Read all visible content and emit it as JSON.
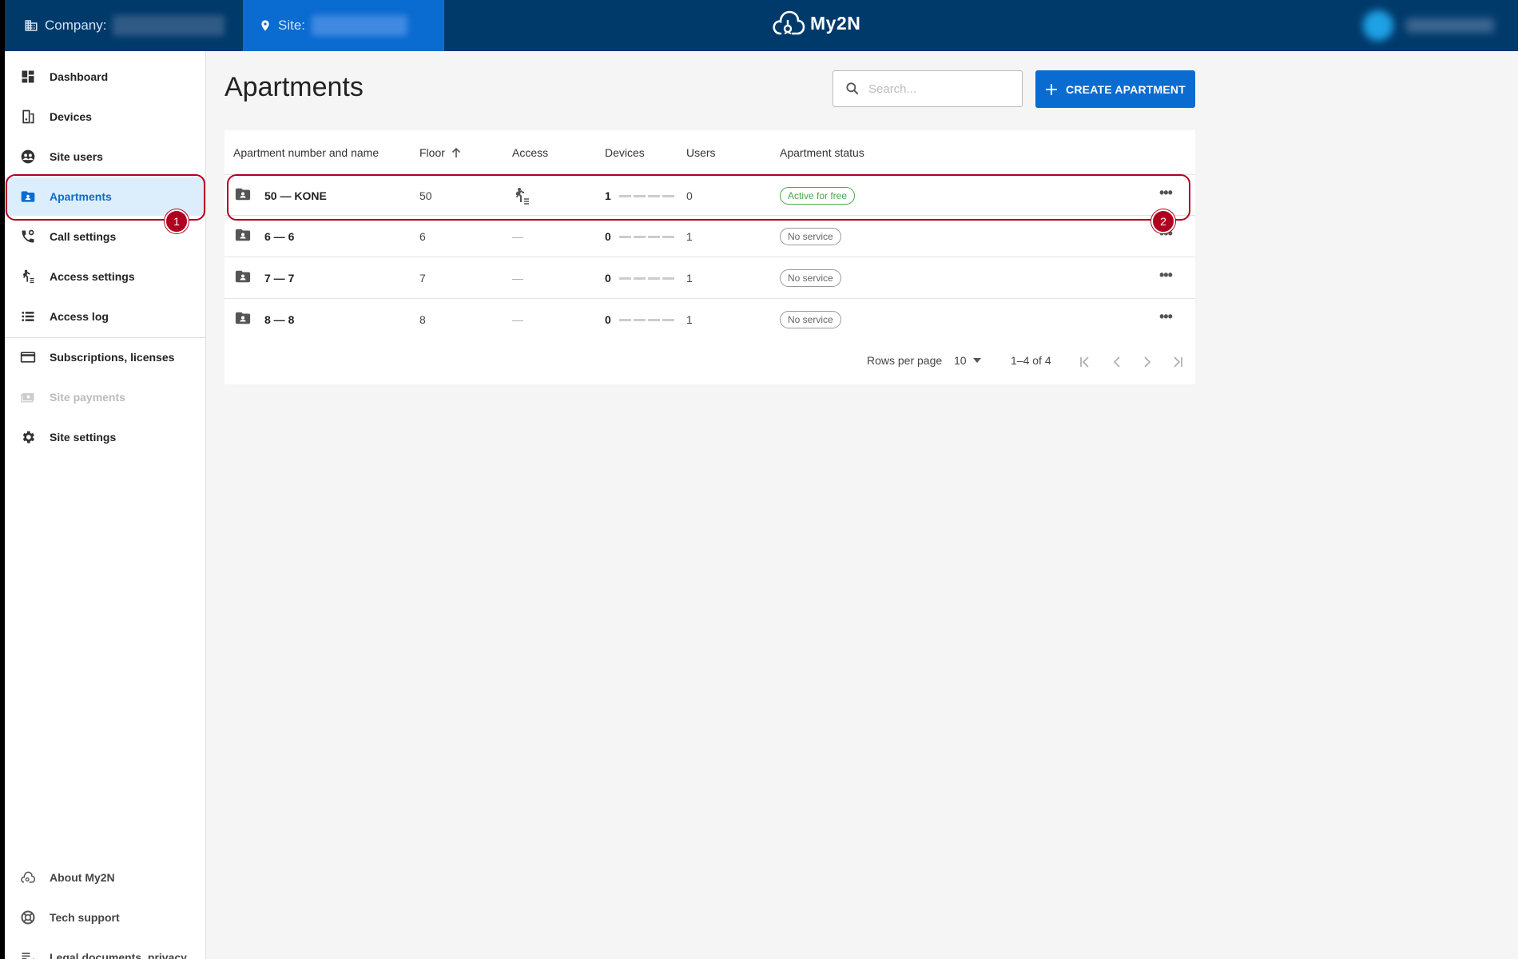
{
  "topbar": {
    "company_label": "Company:",
    "site_label": "Site:",
    "logo_text": "My2N"
  },
  "sidebar": {
    "items": [
      {
        "label": "Dashboard",
        "icon": "dashboard-icon"
      },
      {
        "label": "Devices",
        "icon": "devices-icon"
      },
      {
        "label": "Site users",
        "icon": "site-users-icon"
      },
      {
        "label": "Apartments",
        "icon": "apartments-icon",
        "active": true
      },
      {
        "label": "Call settings",
        "icon": "call-settings-icon"
      },
      {
        "label": "Access settings",
        "icon": "access-settings-icon"
      },
      {
        "label": "Access log",
        "icon": "access-log-icon"
      },
      {
        "label": "Subscriptions, licenses",
        "icon": "subscriptions-icon"
      },
      {
        "label": "Site payments",
        "icon": "site-payments-icon",
        "disabled": true
      },
      {
        "label": "Site settings",
        "icon": "gear-icon"
      }
    ],
    "bottom_items": [
      {
        "label": "About My2N",
        "icon": "cloud-icon"
      },
      {
        "label": "Tech support",
        "icon": "lifebuoy-icon"
      },
      {
        "label": "Legal documents, privacy",
        "icon": "legal-list-icon"
      }
    ]
  },
  "main": {
    "title": "Apartments",
    "search_placeholder": "Search...",
    "create_button": "CREATE APARTMENT",
    "columns": [
      "Apartment number and name",
      "Floor",
      "Access",
      "Devices",
      "Users",
      "Apartment status"
    ],
    "rows": [
      {
        "name": "50 — KONE",
        "floor": "50",
        "access": "icon",
        "devices": "1",
        "users": "0",
        "status": "Active for free",
        "status_type": "active"
      },
      {
        "name": "6 — 6",
        "floor": "6",
        "access": "—",
        "devices": "0",
        "users": "1",
        "status": "No service",
        "status_type": "none"
      },
      {
        "name": "7 — 7",
        "floor": "7",
        "access": "—",
        "devices": "0",
        "users": "1",
        "status": "No service",
        "status_type": "none"
      },
      {
        "name": "8 — 8",
        "floor": "8",
        "access": "—",
        "devices": "0",
        "users": "1",
        "status": "No service",
        "status_type": "none"
      }
    ],
    "pagination": {
      "rows_per_page_label": "Rows per page",
      "rows_per_page_value": "10",
      "range": "1–4 of 4"
    }
  },
  "annotations": {
    "marker_1": "1",
    "marker_2": "2"
  },
  "colors": {
    "topbar": "#003a6b",
    "site_tab": "#0a6bd0",
    "accent": "#0a6bd0",
    "active_status": "#48a84e",
    "annotation": "#b00020"
  }
}
